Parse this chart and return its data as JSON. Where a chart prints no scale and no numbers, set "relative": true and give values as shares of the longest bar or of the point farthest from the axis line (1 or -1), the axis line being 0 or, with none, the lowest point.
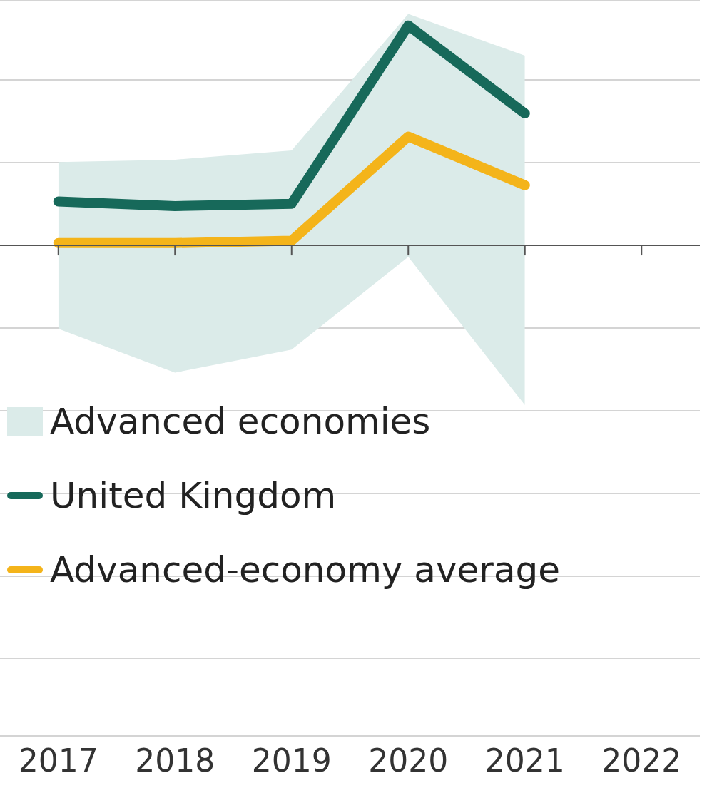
{
  "chart_data": {
    "type": "line",
    "relative": true,
    "grid": "y",
    "legend": "bottom left",
    "line_style": "solid",
    "marker": "none",
    "categories": [
      "2017",
      "2018",
      "2019",
      "2020",
      "2021",
      "2022"
    ],
    "series": [
      {
        "name": "Advanced economies",
        "type": "area",
        "color": "#dbebe9",
        "values": [
          0.36,
          0.37,
          0.41,
          1,
          0.82,
          null
        ]
      },
      {
        "type": "area",
        "color": "#dbebe9",
        "values": [
          -0.36,
          -0.55,
          -0.45,
          -0.05,
          -0.69,
          null
        ]
      },
      {
        "name": "United Kingdom",
        "color": "#17695a",
        "values": [
          0.19,
          0.17,
          0.18,
          0.95,
          0.57,
          null
        ]
      },
      {
        "name": "Advanced-economy average",
        "color": "#f4b41a",
        "values": [
          0.01,
          0.01,
          0.02,
          0.47,
          0.26,
          null
        ]
      }
    ]
  }
}
